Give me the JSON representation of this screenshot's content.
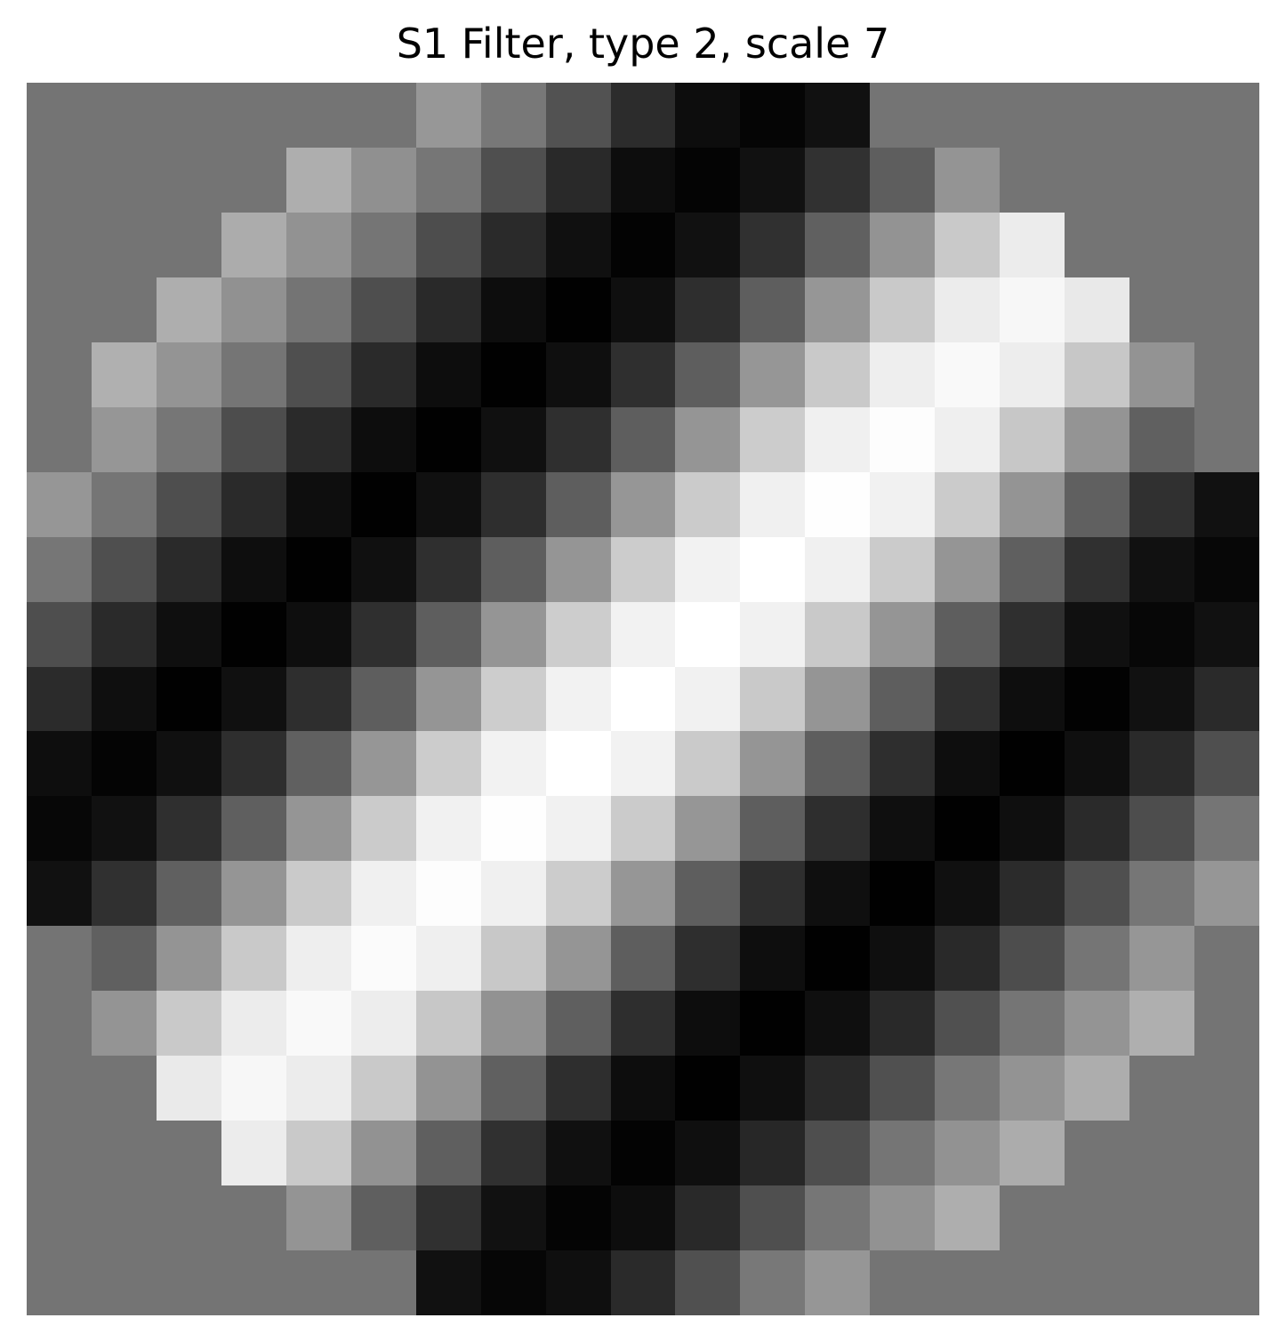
{
  "chart_data": {
    "type": "heatmap",
    "title": "S1 Filter, type 2, scale 7",
    "colormap": "gray",
    "grid": false,
    "axes_visible": false,
    "rows": 19,
    "cols": 19,
    "values": [
      [
        116,
        116,
        116,
        116,
        116,
        116,
        151,
        120,
        82,
        44,
        13,
        5,
        17,
        116,
        116,
        116,
        116,
        116,
        116
      ],
      [
        116,
        116,
        116,
        116,
        174,
        144,
        118,
        79,
        41,
        13,
        4,
        17,
        49,
        94,
        148,
        116,
        116,
        116,
        116
      ],
      [
        116,
        116,
        116,
        172,
        146,
        117,
        77,
        42,
        16,
        3,
        17,
        48,
        96,
        147,
        201,
        236,
        116,
        116,
        116
      ],
      [
        116,
        116,
        174,
        145,
        116,
        78,
        41,
        13,
        1,
        15,
        46,
        94,
        150,
        201,
        236,
        247,
        233,
        116,
        116
      ],
      [
        116,
        176,
        148,
        117,
        79,
        42,
        13,
        1,
        15,
        47,
        94,
        150,
        201,
        238,
        249,
        237,
        199,
        147,
        116
      ],
      [
        116,
        150,
        118,
        77,
        42,
        13,
        1,
        16,
        47,
        94,
        149,
        204,
        240,
        253,
        239,
        199,
        148,
        96,
        116
      ],
      [
        150,
        117,
        78,
        42,
        14,
        1,
        16,
        46,
        94,
        150,
        203,
        240,
        254,
        241,
        203,
        148,
        96,
        48,
        17
      ],
      [
        118,
        79,
        42,
        14,
        1,
        16,
        47,
        94,
        149,
        204,
        242,
        255,
        240,
        203,
        149,
        95,
        48,
        17,
        7
      ],
      [
        78,
        42,
        15,
        1,
        14,
        47,
        94,
        149,
        205,
        242,
        255,
        241,
        201,
        149,
        94,
        47,
        16,
        7,
        17
      ],
      [
        43,
        15,
        1,
        16,
        46,
        94,
        149,
        205,
        242,
        255,
        241,
        201,
        149,
        94,
        47,
        14,
        2,
        17,
        42
      ],
      [
        14,
        4,
        16,
        46,
        96,
        150,
        204,
        242,
        255,
        242,
        202,
        149,
        94,
        46,
        14,
        1,
        15,
        42,
        79
      ],
      [
        7,
        17,
        47,
        95,
        149,
        203,
        241,
        254,
        241,
        203,
        150,
        94,
        46,
        15,
        1,
        15,
        42,
        77,
        117
      ],
      [
        17,
        48,
        96,
        149,
        202,
        240,
        253,
        240,
        204,
        150,
        94,
        46,
        15,
        1,
        16,
        43,
        79,
        118,
        150
      ],
      [
        116,
        96,
        148,
        201,
        238,
        251,
        239,
        200,
        149,
        94,
        46,
        14,
        1,
        15,
        41,
        77,
        117,
        150,
        116
      ],
      [
        116,
        148,
        201,
        236,
        249,
        237,
        199,
        146,
        95,
        46,
        13,
        1,
        15,
        41,
        80,
        117,
        148,
        175,
        116
      ],
      [
        116,
        116,
        234,
        247,
        236,
        201,
        147,
        96,
        46,
        13,
        1,
        15,
        41,
        80,
        119,
        147,
        173,
        116,
        116
      ],
      [
        116,
        116,
        116,
        236,
        201,
        146,
        95,
        48,
        16,
        3,
        15,
        39,
        78,
        117,
        146,
        172,
        116,
        116,
        116
      ],
      [
        116,
        116,
        116,
        116,
        148,
        95,
        48,
        17,
        4,
        13,
        41,
        79,
        118,
        146,
        174,
        116,
        116,
        116,
        116
      ],
      [
        116,
        116,
        116,
        116,
        116,
        116,
        17,
        6,
        15,
        42,
        80,
        120,
        150,
        116,
        116,
        116,
        116,
        116,
        116
      ]
    ]
  }
}
